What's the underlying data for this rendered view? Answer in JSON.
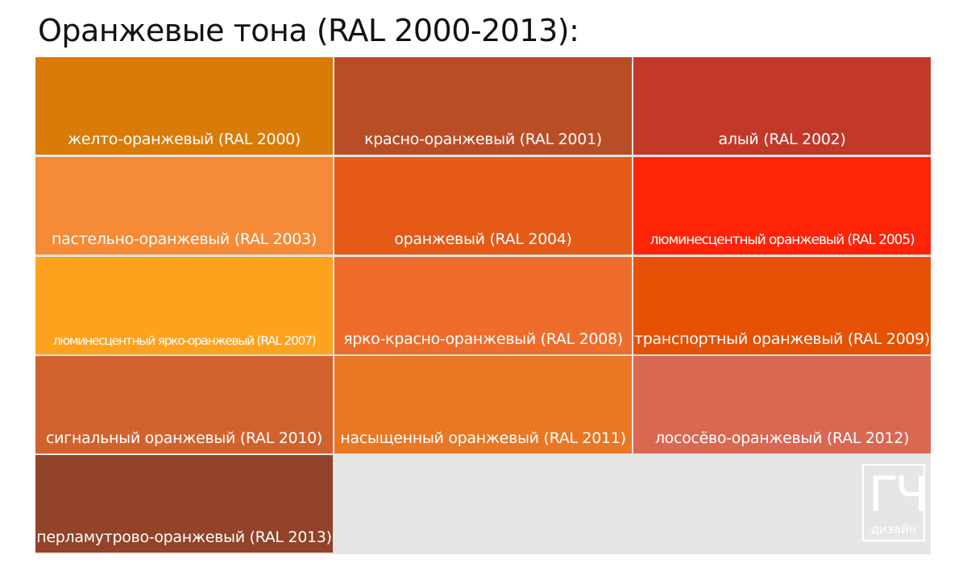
{
  "title": "Оранжевые тона (RAL 2000-2013):",
  "swatches": [
    {
      "label": "желто-оранжевый (RAL 2000)",
      "color": "#DA7A07"
    },
    {
      "label": "красно-оранжевый (RAL 2001)",
      "color": "#B94E26"
    },
    {
      "label": "алый (RAL 2002)",
      "color": "#C33929"
    },
    {
      "label": "пастельно-оранжевый (RAL 2003)",
      "color": "#F58A37"
    },
    {
      "label": "оранжевый (RAL 2004)",
      "color": "#E45A16"
    },
    {
      "label": "люминесцентный оранжевый (RAL 2005)",
      "color": "#FF2308"
    },
    {
      "label": "люминесцентный ярко-оранжевый (RAL 2007)",
      "color": "#FDA21D"
    },
    {
      "label": "ярко-красно-оранжевый (RAL 2008)",
      "color": "#EE6C2C"
    },
    {
      "label": "транспортный оранжевый (RAL 2009)",
      "color": "#E55105"
    },
    {
      "label": "сигнальный оранжевый (RAL 2010)",
      "color": "#D2622D"
    },
    {
      "label": "насыщенный оранжевый (RAL 2011)",
      "color": "#E97723"
    },
    {
      "label": "лососёво-оранжевый (RAL 2012)",
      "color": "#D96752"
    },
    {
      "label": "перламутрово-оранжевый (RAL 2013)",
      "color": "#924329"
    }
  ],
  "logo": {
    "glyph": "ГЧ",
    "text": "дизайн"
  }
}
